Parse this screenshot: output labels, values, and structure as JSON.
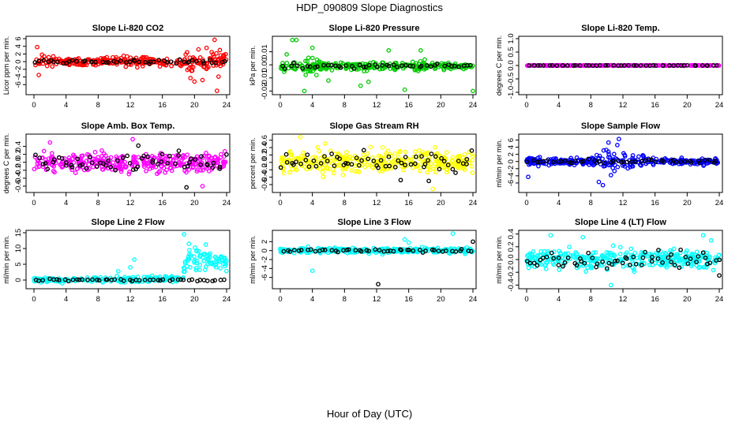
{
  "figure": {
    "title": "HDP_090809  Slope Diagnostics",
    "xlabel": "Hour of Day (UTC)"
  },
  "chart_data": [
    {
      "type": "scatter",
      "title": "Slope Li-820 CO2",
      "ylabel": "Licor ppm per min.",
      "color": "#ff0000",
      "xlim": [
        0,
        24
      ],
      "ylim": [
        -8,
        6
      ],
      "xticks": [
        0,
        4,
        8,
        12,
        16,
        20,
        24
      ],
      "yticks": [
        -6,
        -4,
        -2,
        0,
        2,
        4,
        6
      ],
      "ytick_labels": [
        "-6",
        "-4",
        "-2",
        "0",
        "2",
        "4",
        "6"
      ],
      "series": [
        {
          "name": "all",
          "n": 300,
          "spread": [
            [
              0,
              0.9
            ],
            [
              18,
              1.1
            ],
            [
              20,
              2.2
            ],
            [
              24,
              2.0
            ]
          ],
          "highlights": [
            [
              0.4,
              3.8
            ],
            [
              0.6,
              -3.5
            ],
            [
              1,
              1.8
            ],
            [
              19.5,
              -4.3
            ],
            [
              20,
              -5.2
            ],
            [
              20.5,
              3.2
            ],
            [
              21.5,
              3.6
            ],
            [
              22.5,
              5.7
            ],
            [
              22.8,
              -7.6
            ],
            [
              23,
              -3.9
            ],
            [
              21,
              -4.8
            ]
          ]
        },
        {
          "name": "hourly",
          "n": 50,
          "spread": [
            [
              0,
              0.4
            ],
            [
              24,
              0.6
            ]
          ],
          "highlights": []
        }
      ]
    },
    {
      "type": "scatter",
      "title": "Slope Li-820 Pressure",
      "ylabel": "kPa per min.",
      "color": "#00cc00",
      "xlim": [
        0,
        24
      ],
      "ylim": [
        -0.021,
        0.02
      ],
      "xticks": [
        0,
        4,
        8,
        12,
        16,
        20,
        24
      ],
      "yticks": [
        -0.02,
        -0.01,
        0,
        0.01
      ],
      "ytick_labels": [
        "-0.02",
        "-0.01",
        "0.00",
        "0.01"
      ],
      "series": [
        {
          "name": "all",
          "n": 300,
          "center": -0.001,
          "spread": [
            [
              0,
              0.004
            ],
            [
              10,
              0.003
            ],
            [
              16,
              0.003
            ],
            [
              24,
              0.0015
            ]
          ],
          "highlights": [
            [
              1.5,
              0.019
            ],
            [
              2,
              0.019
            ],
            [
              0.8,
              0.008
            ],
            [
              3,
              -0.02
            ],
            [
              4,
              0.013
            ],
            [
              6,
              -0.012
            ],
            [
              10,
              -0.016
            ],
            [
              11,
              -0.013
            ],
            [
              13.5,
              0.011
            ],
            [
              15.5,
              -0.019
            ],
            [
              17.5,
              0.011
            ],
            [
              18,
              0.004
            ],
            [
              24,
              -0.02
            ]
          ]
        },
        {
          "name": "hourly",
          "n": 48,
          "center": -0.001,
          "spread": [
            [
              0,
              0.002
            ],
            [
              24,
              0.001
            ]
          ],
          "highlights": []
        }
      ]
    },
    {
      "type": "scatter",
      "title": "Slope Li-820 Temp.",
      "ylabel": "degrees C per min.",
      "color": "#ff00ff",
      "xlim": [
        0,
        24
      ],
      "ylim": [
        -1,
        1
      ],
      "xticks": [
        0,
        4,
        8,
        12,
        16,
        20,
        24
      ],
      "yticks": [
        -1,
        -0.5,
        0,
        0.5,
        1
      ],
      "ytick_labels": [
        "-1.0",
        "-0.5",
        "0.0",
        "0.5",
        "1.0"
      ],
      "series": [
        {
          "name": "all",
          "n": 260,
          "spread": [
            [
              0,
              0.008
            ],
            [
              24,
              0.008
            ]
          ],
          "highlights": []
        },
        {
          "name": "hourly",
          "n": 48,
          "spread": [
            [
              0,
              0.004
            ],
            [
              24,
              0.004
            ]
          ],
          "highlights": []
        }
      ]
    },
    {
      "type": "scatter",
      "title": "Slope Amb. Box Temp.",
      "ylabel": "degrees C per min.",
      "color": "#ff00ff",
      "xlim": [
        0,
        24
      ],
      "ylim": [
        -0.7,
        0.65
      ],
      "xticks": [
        0,
        4,
        8,
        12,
        16,
        20,
        24
      ],
      "yticks": [
        -0.6,
        -0.4,
        -0.2,
        0,
        0.2,
        0.4
      ],
      "ytick_labels": [
        "-0.6",
        "-0.4",
        "-0.2",
        "0.0",
        "0.2",
        "0.4"
      ],
      "series": [
        {
          "name": "all",
          "n": 340,
          "spread": [
            [
              0,
              0.22
            ],
            [
              24,
              0.22
            ]
          ],
          "highlights": [
            [
              12.3,
              0.58
            ],
            [
              2,
              0.5
            ],
            [
              21,
              -0.6
            ]
          ]
        },
        {
          "name": "hourly",
          "n": 60,
          "spread": [
            [
              0,
              0.18
            ],
            [
              24,
              0.2
            ]
          ],
          "highlights": [
            [
              19,
              -0.63
            ],
            [
              13,
              0.42
            ]
          ]
        }
      ]
    },
    {
      "type": "scatter",
      "title": "Slope Gas Stream RH",
      "ylabel": "percent per min.",
      "color": "#ffff00",
      "xlim": [
        0,
        24
      ],
      "ylim": [
        -0.75,
        0.7
      ],
      "xticks": [
        0,
        4,
        8,
        12,
        16,
        20,
        24
      ],
      "yticks": [
        -0.6,
        -0.4,
        -0.2,
        0,
        0.2,
        0.4,
        0.6
      ],
      "ytick_labels": [
        "-0.6",
        "-0.4",
        "-0.2",
        "0.0",
        "0.2",
        "0.4",
        "0.6"
      ],
      "series": [
        {
          "name": "all",
          "n": 360,
          "spread": [
            [
              0,
              0.26
            ],
            [
              24,
              0.26
            ]
          ],
          "highlights": [
            [
              2.5,
              0.68
            ],
            [
              19,
              -0.72
            ]
          ]
        },
        {
          "name": "hourly",
          "n": 60,
          "spread": [
            [
              0,
              0.2
            ],
            [
              24,
              0.2
            ]
          ],
          "highlights": [
            [
              15,
              -0.48
            ],
            [
              18.5,
              -0.5
            ]
          ]
        }
      ]
    },
    {
      "type": "scatter",
      "title": "Slope Sample Flow",
      "ylabel": "ml/min per min.",
      "color": "#0000ff",
      "xlim": [
        0,
        24
      ],
      "ylim": [
        -8,
        7
      ],
      "xticks": [
        0,
        4,
        8,
        12,
        16,
        20,
        24
      ],
      "yticks": [
        -6,
        -4,
        -2,
        0,
        2,
        4,
        6
      ],
      "ytick_labels": [
        "-6",
        "-4",
        "-2",
        "0",
        "2",
        "4",
        "6"
      ],
      "series": [
        {
          "name": "all",
          "n": 320,
          "spread": [
            [
              0,
              0.8
            ],
            [
              8,
              0.9
            ],
            [
              9.5,
              2.6
            ],
            [
              12,
              2.3
            ],
            [
              14,
              1.4
            ],
            [
              17,
              0.9
            ],
            [
              24,
              0.7
            ]
          ],
          "highlights": [
            [
              0.2,
              -4.3
            ],
            [
              9.5,
              -6.6
            ],
            [
              9,
              -5.7
            ],
            [
              10.2,
              5.3
            ],
            [
              11.5,
              6.3
            ],
            [
              11.3,
              4.6
            ],
            [
              10.5,
              -3.8
            ]
          ]
        },
        {
          "name": "hourly",
          "n": 48,
          "spread": [
            [
              0,
              0.4
            ],
            [
              24,
              0.5
            ]
          ],
          "highlights": []
        }
      ]
    },
    {
      "type": "scatter",
      "title": "Slope Line 2 Flow",
      "ylabel": "ml/min per min.",
      "color": "#00ffff",
      "xlim": [
        0,
        24
      ],
      "ylim": [
        -2,
        15
      ],
      "xticks": [
        0,
        4,
        8,
        12,
        16,
        20,
        24
      ],
      "yticks": [
        0,
        5,
        10,
        15
      ],
      "ytick_labels": [
        "0",
        "5",
        "10",
        "15"
      ],
      "series": [
        {
          "name": "all",
          "n": 300,
          "spread": [
            [
              0,
              0.6
            ],
            [
              18,
              0.8
            ],
            [
              19,
              3.5
            ],
            [
              24,
              2.5
            ]
          ],
          "center_pts": [
            [
              0,
              0
            ],
            [
              18.5,
              0.3
            ],
            [
              19,
              7
            ],
            [
              24,
              5
            ]
          ],
          "highlights": [
            [
              18.7,
              14.5
            ],
            [
              19.3,
              11.5
            ],
            [
              12.5,
              6.5
            ],
            [
              12,
              4
            ],
            [
              10.5,
              2.8
            ]
          ]
        },
        {
          "name": "hourly",
          "n": 48,
          "spread": [
            [
              0,
              0.3
            ],
            [
              24,
              0.4
            ]
          ],
          "highlights": []
        }
      ]
    },
    {
      "type": "scatter",
      "title": "Slope Line 3 Flow",
      "ylabel": "ml/min per min.",
      "color": "#00ffff",
      "xlim": [
        0,
        24
      ],
      "ylim": [
        -8,
        4
      ],
      "xticks": [
        0,
        4,
        8,
        12,
        16,
        20,
        24
      ],
      "yticks": [
        -6,
        -4,
        -2,
        0,
        2
      ],
      "ytick_labels": [
        "-6",
        "-4",
        "-2",
        "0",
        "2"
      ],
      "series": [
        {
          "name": "all",
          "n": 300,
          "spread": [
            [
              0,
              0.5
            ],
            [
              24,
              0.5
            ]
          ],
          "highlights": [
            [
              4,
              -4.5
            ],
            [
              21.5,
              3.8
            ],
            [
              15.5,
              2.5
            ],
            [
              16,
              1.8
            ]
          ]
        },
        {
          "name": "hourly",
          "n": 48,
          "spread": [
            [
              0,
              0.3
            ],
            [
              24,
              0.3
            ]
          ],
          "highlights": [
            [
              12.2,
              -7.5
            ],
            [
              24,
              2
            ]
          ]
        }
      ]
    },
    {
      "type": "scatter",
      "title": "Slope Line 4 (LT) Flow",
      "ylabel": "ml/min per min.",
      "color": "#00ffff",
      "xlim": [
        0,
        24
      ],
      "ylim": [
        -0.42,
        0.42
      ],
      "xticks": [
        0,
        4,
        8,
        12,
        16,
        20,
        24
      ],
      "yticks": [
        -0.4,
        -0.2,
        0,
        0.2,
        0.4
      ],
      "ytick_labels": [
        "-0.4",
        "-0.2",
        "0.0",
        "0.2",
        "0.4"
      ],
      "series": [
        {
          "name": "all",
          "n": 340,
          "spread": [
            [
              0,
              0.13
            ],
            [
              24,
              0.13
            ]
          ],
          "highlights": [
            [
              3,
              0.38
            ],
            [
              7,
              0.35
            ],
            [
              10.5,
              -0.4
            ],
            [
              22,
              0.38
            ],
            [
              23,
              0.3
            ]
          ]
        },
        {
          "name": "hourly",
          "n": 60,
          "spread": [
            [
              0,
              0.12
            ],
            [
              24,
              0.12
            ]
          ],
          "highlights": [
            [
              24,
              -0.25
            ]
          ]
        }
      ]
    }
  ]
}
